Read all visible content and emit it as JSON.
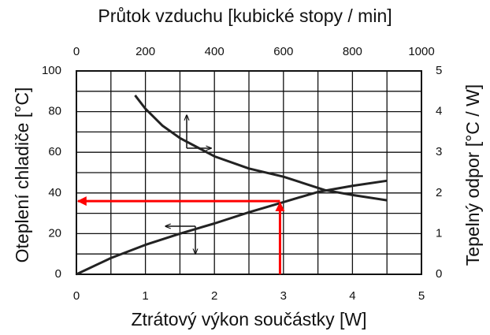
{
  "chart_data": {
    "type": "line",
    "title": "Průtok vzduchu [kubické stopy / min]",
    "xlabel": "Ztrátový výkon součástky [W]",
    "ylabel": "Oteplení chladiče [°C]",
    "y2label": "Tepelný odpor [°C / W]",
    "xlim": [
      0,
      5
    ],
    "xticks": [
      0,
      1,
      2,
      3,
      4,
      5
    ],
    "x2lim": [
      0,
      1000
    ],
    "x2ticks": [
      0,
      200,
      400,
      600,
      800,
      1000
    ],
    "ylim": [
      0,
      100
    ],
    "yticks": [
      0,
      20,
      40,
      60,
      80,
      100
    ],
    "y2lim": [
      0,
      5
    ],
    "y2ticks": [
      0,
      1,
      2,
      3,
      4,
      5
    ],
    "grid": true,
    "xgrid": [
      0.5,
      1,
      1.5,
      2,
      2.5,
      3,
      3.5,
      4,
      4.5
    ],
    "ygrid": [
      10,
      20,
      30,
      40,
      50,
      60,
      70,
      80,
      90
    ],
    "series": [
      {
        "color": "#222222",
        "x": [
          0,
          0.5,
          1,
          1.5,
          2,
          2.5,
          3,
          3.5,
          4,
          4.5
        ],
        "values": [
          0,
          8,
          14.5,
          20,
          25,
          30.5,
          35.5,
          40.5,
          43.5,
          46
        ]
      },
      {
        "color": "#222222",
        "axis": "y2",
        "xaxis": "x2",
        "x": [
          170,
          200,
          250,
          300,
          400,
          500,
          600,
          720,
          800,
          900
        ],
        "values": [
          4.4,
          4.07,
          3.65,
          3.35,
          2.9,
          2.6,
          2.4,
          2.07,
          1.95,
          1.82
        ]
      }
    ],
    "annotation": {
      "x": 2.95,
      "y": 36,
      "color": "#ff0000"
    }
  }
}
